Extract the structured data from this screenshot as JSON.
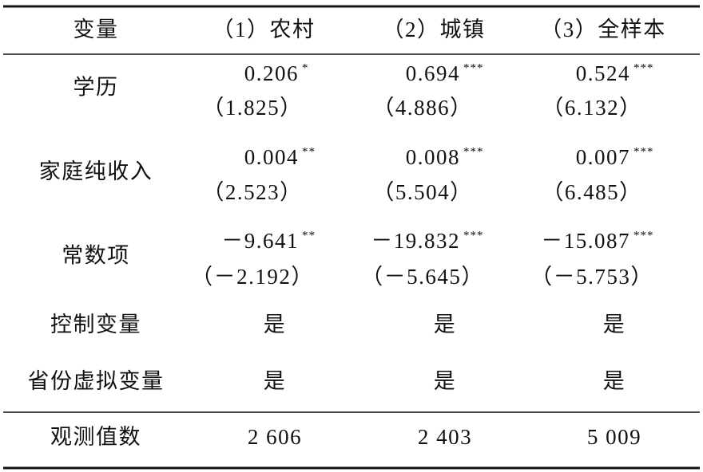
{
  "table": {
    "header": [
      "变量",
      "（1）农村",
      "（2）城镇",
      "（3）全样本"
    ],
    "stat_rows": [
      {
        "label": "学历",
        "cells": [
          {
            "value": "0.206",
            "stars": "*",
            "t": "（1.825）"
          },
          {
            "value": "0.694",
            "stars": "***",
            "t": "（4.886）"
          },
          {
            "value": "0.524",
            "stars": "***",
            "t": "（6.132）"
          }
        ]
      },
      {
        "label": "家庭纯收入",
        "cells": [
          {
            "value": "0.004",
            "stars": "**",
            "t": "（2.523）"
          },
          {
            "value": "0.008",
            "stars": "***",
            "t": "（5.504）"
          },
          {
            "value": "0.007",
            "stars": "***",
            "t": "（6.485）"
          }
        ]
      },
      {
        "label": "常数项",
        "cells": [
          {
            "value": "－9.641",
            "stars": "**",
            "t": "（－2.192）"
          },
          {
            "value": "－19.832",
            "stars": "***",
            "t": "（－5.645）"
          },
          {
            "value": "－15.087",
            "stars": "***",
            "t": "（－5.753）"
          }
        ]
      }
    ],
    "text_rows": [
      {
        "label": "控制变量",
        "cells": [
          "是",
          "是",
          "是"
        ]
      },
      {
        "label": "省份虚拟变量",
        "cells": [
          "是",
          "是",
          "是"
        ]
      }
    ],
    "footer": {
      "label": "观测值数",
      "cells": [
        "2 606",
        "2 403",
        "5 009"
      ]
    }
  }
}
